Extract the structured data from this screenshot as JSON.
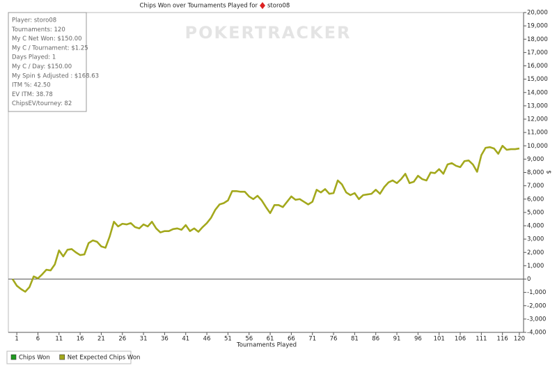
{
  "chart_data": {
    "type": "line",
    "title": "Chips Won over Tournaments Played for",
    "player": "storo08",
    "watermark": "POKERTRACKER",
    "stats": [
      "Player: storo08",
      "Tournaments: 120",
      "My C Net Won: $150.00",
      "My C / Tournament: $1.25",
      "Days Played: 1",
      "My C / Day: $150.00",
      "My Spin $ Adjusted : $168.63",
      "ITM %: 42.50",
      "EV ITM: 38.78",
      "ChipsEV/tourney: 82"
    ],
    "x_label": "Tournaments Played",
    "y_label": "$",
    "x": [
      0,
      1,
      2,
      3,
      4,
      5,
      6,
      7,
      8,
      9,
      10,
      11,
      12,
      13,
      14,
      15,
      16,
      17,
      18,
      19,
      20,
      21,
      22,
      23,
      24,
      25,
      26,
      27,
      28,
      29,
      30,
      31,
      32,
      33,
      34,
      35,
      36,
      37,
      38,
      39,
      40,
      41,
      42,
      43,
      44,
      45,
      46,
      47,
      48,
      49,
      50,
      51,
      52,
      53,
      54,
      55,
      56,
      57,
      58,
      59,
      60,
      61,
      62,
      63,
      64,
      65,
      66,
      67,
      68,
      69,
      70,
      71,
      72,
      73,
      74,
      75,
      76,
      77,
      78,
      79,
      80,
      81,
      82,
      83,
      84,
      85,
      86,
      87,
      88,
      89,
      90,
      91,
      92,
      93,
      94,
      95,
      96,
      97,
      98,
      99,
      100,
      101,
      102,
      103,
      104,
      105,
      106,
      107,
      108,
      109,
      110,
      111,
      112,
      113,
      114,
      115,
      116,
      117,
      118,
      119,
      120
    ],
    "series": [
      {
        "name": "Chips Won",
        "color": "#1f9a1f"
      },
      {
        "name": "Net Expected Chips Won",
        "color": "#a3a81c",
        "values": [
          0,
          -500,
          -750,
          -950,
          -600,
          200,
          50,
          350,
          700,
          650,
          1100,
          2150,
          1700,
          2200,
          2250,
          2000,
          1800,
          1850,
          2700,
          2900,
          2800,
          2450,
          2350,
          3200,
          4300,
          3950,
          4150,
          4100,
          4200,
          3900,
          3800,
          4100,
          3950,
          4300,
          3800,
          3500,
          3600,
          3600,
          3750,
          3800,
          3700,
          4050,
          3600,
          3800,
          3550,
          3900,
          4200,
          4600,
          5200,
          5600,
          5700,
          5900,
          6600,
          6600,
          6550,
          6550,
          6200,
          6000,
          6250,
          5900,
          5400,
          4950,
          5550,
          5550,
          5400,
          5800,
          6200,
          5950,
          6000,
          5800,
          5600,
          5800,
          6700,
          6500,
          6750,
          6400,
          6450,
          7400,
          7100,
          6500,
          6300,
          6450,
          6000,
          6300,
          6350,
          6400,
          6700,
          6400,
          6900,
          7250,
          7400,
          7200,
          7500,
          7900,
          7200,
          7300,
          7750,
          7500,
          7400,
          8000,
          7950,
          8250,
          7900,
          8600,
          8700,
          8500,
          8400,
          8850,
          8900,
          8600,
          8050,
          9300,
          9850,
          9900,
          9800,
          9400,
          10000,
          9700,
          9750,
          9750,
          9800
        ]
      }
    ],
    "xlim": [
      -1,
      121
    ],
    "xticks": [
      1,
      6,
      11,
      16,
      21,
      26,
      31,
      36,
      41,
      46,
      51,
      56,
      61,
      66,
      71,
      76,
      81,
      86,
      91,
      96,
      101,
      106,
      111,
      116,
      120
    ],
    "ylim": [
      -4000,
      20000
    ],
    "yticks": [
      {
        "value": -4000,
        "label": "-4,000"
      },
      {
        "value": -3000,
        "label": "-3,000"
      },
      {
        "value": -2000,
        "label": "-2,000"
      },
      {
        "value": -1000,
        "label": "-1,000"
      },
      0,
      {
        "value": 1000,
        "label": "1,000"
      },
      {
        "value": 2000,
        "label": "2,000"
      },
      {
        "value": 3000,
        "label": "3,000"
      },
      {
        "value": 4000,
        "label": "4,000"
      },
      {
        "value": 5000,
        "label": "5,000"
      },
      {
        "value": 6000,
        "label": "6,000"
      },
      {
        "value": 7000,
        "label": "7,000"
      },
      {
        "value": 8000,
        "label": "8,000"
      },
      {
        "value": 9000,
        "label": "9,000"
      },
      {
        "value": 10000,
        "label": "10,000"
      },
      {
        "value": 11000,
        "label": "11,000"
      },
      {
        "value": 12000,
        "label": "12,000"
      },
      {
        "value": 13000,
        "label": "13,000"
      },
      {
        "value": 14000,
        "label": "14,000"
      },
      {
        "value": 15000,
        "label": "15,000"
      },
      {
        "value": 16000,
        "label": "16,000"
      },
      {
        "value": 17000,
        "label": "17,000"
      },
      {
        "value": 18000,
        "label": "18,000"
      },
      {
        "value": 19000,
        "label": "19,000"
      },
      {
        "value": 20000,
        "label": "20,000"
      }
    ],
    "zero_line": true
  }
}
